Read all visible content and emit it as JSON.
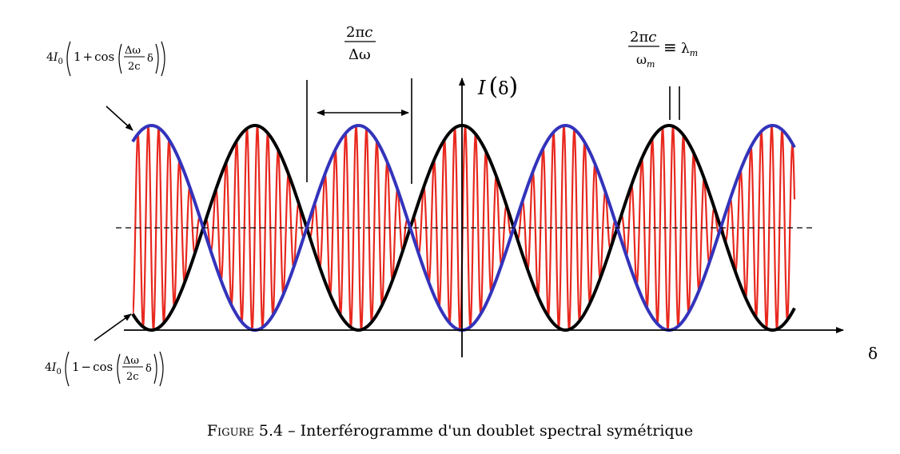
{
  "caption": {
    "label": "Figure 5.4",
    "separator": " – ",
    "text": "Interférogramme d'un doublet spectral symétrique"
  },
  "axes": {
    "x_label": "δ",
    "y_label_I": "I",
    "y_label_paren_open": "(",
    "y_label_var": "δ",
    "y_label_paren_close": ")"
  },
  "annotations": {
    "upper_envelope": {
      "coef": "4",
      "I": "I",
      "sub": "0",
      "one": "1",
      "op": "+",
      "fn": "cos",
      "num": "Δω",
      "den": "2c",
      "var": "δ"
    },
    "lower_envelope": {
      "coef": "4",
      "I": "I",
      "sub": "0",
      "one": "1",
      "op": "−",
      "fn": "cos",
      "num": "Δω",
      "den": "2c",
      "var": "δ"
    },
    "beat_period": {
      "num_2pi": "2π",
      "num_c": "c",
      "den": "Δω"
    },
    "carrier_period": {
      "num_2pi": "2π",
      "num_c": "c",
      "den": "ω",
      "den_sub": "m",
      "equiv": "≡",
      "lambda": "λ",
      "lambda_sub": "m"
    }
  },
  "colors": {
    "carrier": "#e8281e",
    "upper_envelope": "#3333bb",
    "lower_envelope": "#000000",
    "axes": "#000000"
  }
}
